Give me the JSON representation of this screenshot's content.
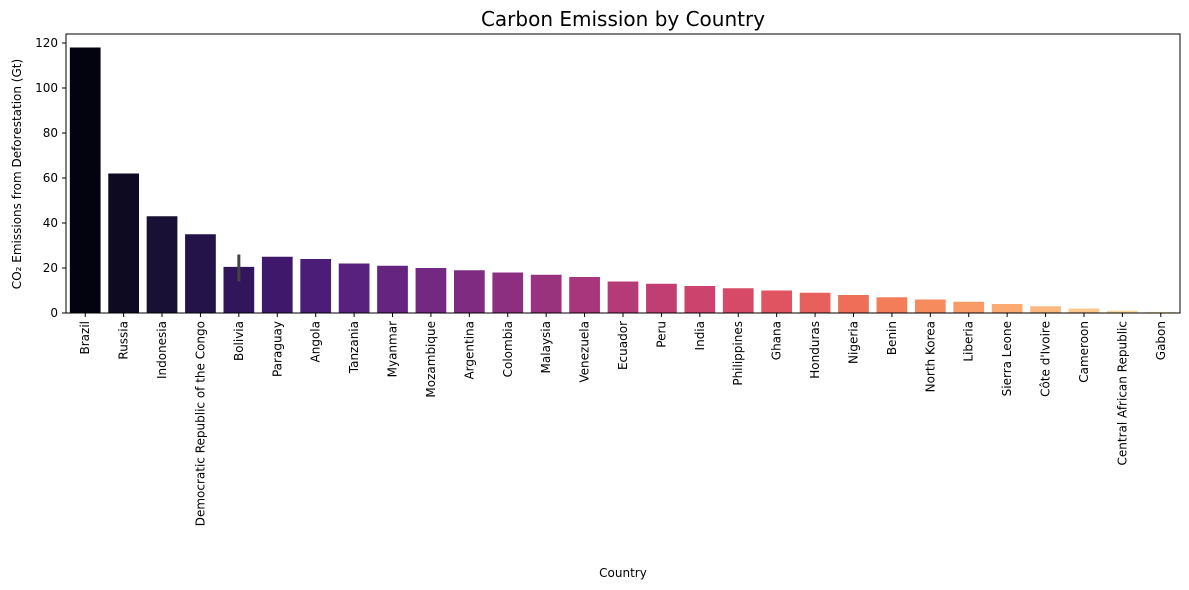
{
  "chart_data": {
    "type": "bar",
    "title": "Carbon Emission by Country",
    "xlabel": "Country",
    "ylabel": "CO₂ Emissions from Deforestation (Gt)",
    "ylim": [
      0,
      124
    ],
    "yticks": [
      0,
      20,
      40,
      60,
      80,
      100,
      120
    ],
    "grid": false,
    "legend": "none",
    "categories": [
      "Brazil",
      "Russia",
      "Indonesia",
      "Democratic Republic of the Congo",
      "Bolivia",
      "Paraguay",
      "Angola",
      "Tanzania",
      "Myanmar",
      "Mozambique",
      "Argentina",
      "Colombia",
      "Malaysia",
      "Venezuela",
      "Ecuador",
      "Peru",
      "India",
      "Philippines",
      "Ghana",
      "Honduras",
      "Nigeria",
      "Benin",
      "North Korea",
      "Liberia",
      "Sierra Leone",
      "Côte d'Ivoire",
      "Cameroon",
      "Central African Republic",
      "Gabon"
    ],
    "values": [
      118,
      62,
      43,
      35,
      20.5,
      25,
      24,
      22,
      21,
      20,
      19,
      18,
      17,
      16,
      14,
      13,
      12,
      11,
      10,
      9,
      8,
      7,
      6,
      5,
      4,
      3,
      2,
      1,
      0.5
    ],
    "error_bars": [
      {
        "category": "Bolivia",
        "low": 14,
        "high": 26
      }
    ],
    "colors": [
      "#03030f",
      "#0d0a22",
      "#191035",
      "#241349",
      "#31165b",
      "#3f186b",
      "#4c1d77",
      "#59217e",
      "#662481",
      "#732881",
      "#7f2b81",
      "#8c2f80",
      "#9a337e",
      "#a7367c",
      "#b43a78",
      "#c13e73",
      "#cc436d",
      "#d74a67",
      "#e05461",
      "#e8605b",
      "#ee6e58",
      "#f37d58",
      "#f68c5e",
      "#f99b66",
      "#fbaa71",
      "#fcb97e",
      "#fdc98d",
      "#fdd89d",
      "#fce7b0"
    ],
    "errorbar_color": "#444444"
  }
}
